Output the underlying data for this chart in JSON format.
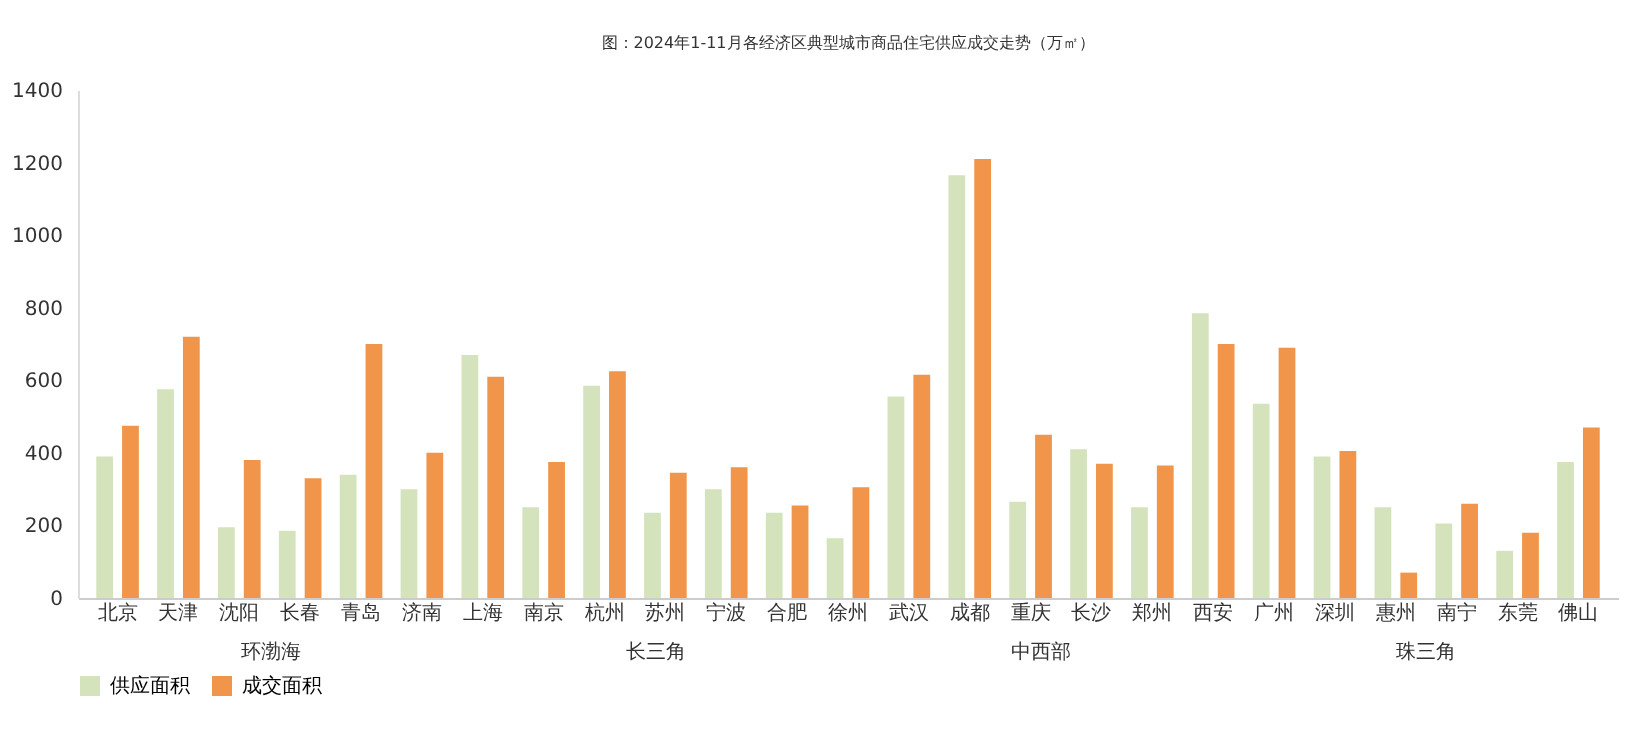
{
  "chart_data": {
    "type": "bar",
    "title": "图：2024年1-11月各经济区典型城市商品住宅供应成交走势（万㎡）",
    "categories": [
      "北京",
      "天津",
      "沈阳",
      "长春",
      "青岛",
      "济南",
      "上海",
      "南京",
      "杭州",
      "苏州",
      "宁波",
      "合肥",
      "徐州",
      "武汉",
      "成都",
      "重庆",
      "长沙",
      "郑州",
      "西安",
      "广州",
      "深圳",
      "惠州",
      "南宁",
      "东莞",
      "佛山"
    ],
    "series": [
      {
        "name": "供应面积",
        "color": "#d5e3bd",
        "values": [
          390,
          575,
          195,
          185,
          340,
          300,
          670,
          250,
          585,
          235,
          300,
          235,
          165,
          555,
          1165,
          265,
          410,
          250,
          785,
          535,
          390,
          250,
          205,
          130,
          375
        ]
      },
      {
        "name": "成交面积",
        "color": "#f0954a",
        "values": [
          475,
          720,
          380,
          330,
          700,
          400,
          610,
          375,
          625,
          345,
          360,
          255,
          305,
          615,
          1210,
          450,
          370,
          365,
          700,
          690,
          405,
          70,
          260,
          180,
          470
        ]
      }
    ],
    "ylim": [
      0,
      1400
    ],
    "yticks": [
      0,
      200,
      400,
      600,
      800,
      1000,
      1200,
      1400
    ],
    "grid": false,
    "legend": "bottom",
    "annotations": [
      "环渤海",
      "长三角",
      "中西部",
      "珠三角"
    ]
  }
}
